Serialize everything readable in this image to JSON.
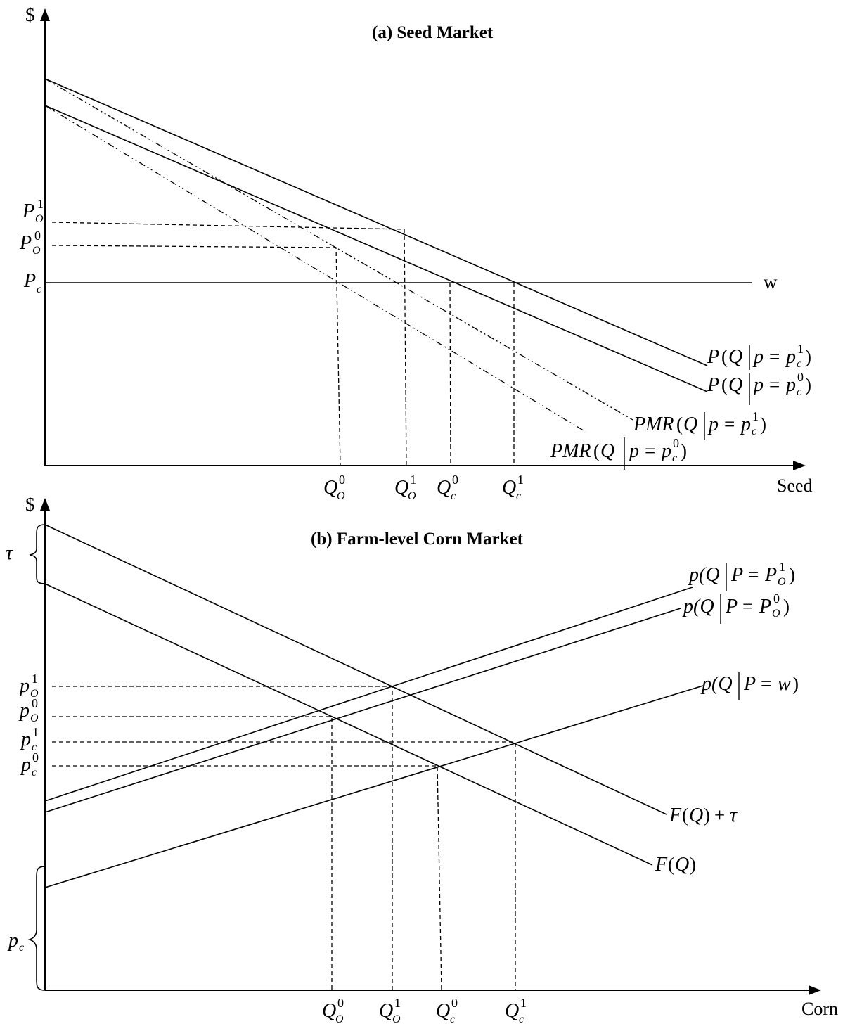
{
  "panel_a": {
    "title": "(a) Seed Market",
    "y_axis_label": "$",
    "x_axis_label": "Seed",
    "w_label": "w",
    "y_ticks": {
      "PO1": "P",
      "PO1_sub": "O",
      "PO1_sup": "1",
      "PO0": "P",
      "PO0_sub": "O",
      "PO0_sup": "0",
      "Pc": "P",
      "Pc_sub": "c"
    },
    "x_ticks": {
      "QO0": "Q",
      "QO0_sub": "O",
      "QO0_sup": "0",
      "QO1": "Q",
      "QO1_sub": "O",
      "QO1_sup": "1",
      "Qc0": "Q",
      "Qc0_sub": "c",
      "Qc0_sup": "0",
      "Qc1": "Q",
      "Qc1_sub": "c",
      "Qc1_sup": "1"
    },
    "curve_labels": {
      "P1_a": "P",
      "P1_b": "(",
      "P1_c": "Q",
      "P1_d": "p",
      "P1_e": "=",
      "P1_f": "p",
      "P1_sub": "c",
      "P1_sup": "1",
      "P1_close": ")",
      "P0_a": "P",
      "P0_b": "(",
      "P0_c": "Q",
      "P0_d": "p",
      "P0_e": "=",
      "P0_f": "p",
      "P0_sub": "c",
      "P0_sup": "0",
      "P0_close": ")",
      "PMR1_a": "PMR",
      "PMR1_b": "(",
      "PMR1_c": "Q",
      "PMR1_d": "p",
      "PMR1_e": "=",
      "PMR1_f": "p",
      "PMR1_sub": "c",
      "PMR1_sup": "1",
      "PMR1_close": ")",
      "PMR0_a": "PMR",
      "PMR0_b": "(",
      "PMR0_c": "Q",
      "PMR0_d": "p",
      "PMR0_e": "=",
      "PMR0_f": "p",
      "PMR0_sub": "c",
      "PMR0_sup": "0",
      "PMR0_close": ")"
    }
  },
  "panel_b": {
    "title": "(b) Farm-level Corn Market",
    "y_axis_label": "$",
    "x_axis_label": "Corn",
    "tau_label": "τ",
    "pc_brace": "p",
    "pc_brace_sub": "c",
    "y_ticks": {
      "pO1": "p",
      "pO1_sub": "O",
      "pO1_sup": "1",
      "pO0": "p",
      "pO0_sub": "O",
      "pO0_sup": "0",
      "pc1": "p",
      "pc1_sub": "c",
      "pc1_sup": "1",
      "pc0": "p",
      "pc0_sub": "c",
      "pc0_sup": "0"
    },
    "x_ticks": {
      "QO0": "Q",
      "QO0_sub": "O",
      "QO0_sup": "0",
      "QO1": "Q",
      "QO1_sub": "O",
      "QO1_sup": "1",
      "Qc0": "Q",
      "Qc0_sub": "c",
      "Qc0_sup": "0",
      "Qc1": "Q",
      "Qc1_sub": "c",
      "Qc1_sup": "1"
    },
    "curve_labels": {
      "s1_a": "p(Q",
      "s1_b": "P",
      "s1_c": "=",
      "s1_d": "P",
      "s1_sub": "O",
      "s1_sup": "1",
      "s1_close": ")",
      "s0_a": "p(Q",
      "s0_b": "P",
      "s0_c": "=",
      "s0_d": "P",
      "s0_sub": "O",
      "s0_sup": "0",
      "s0_close": ")",
      "sw_a": "p(Q",
      "sw_b": "P",
      "sw_c": "=",
      "sw_d": "w",
      "sw_close": ")",
      "Ftau_a": "F",
      "Ftau_b": "(",
      "Ftau_c": "Q",
      "Ftau_d": ")",
      "Ftau_e": "+",
      "Ftau_f": "τ",
      "F_a": "F",
      "F_b": "(",
      "F_c": "Q",
      "F_d": ")"
    }
  }
}
